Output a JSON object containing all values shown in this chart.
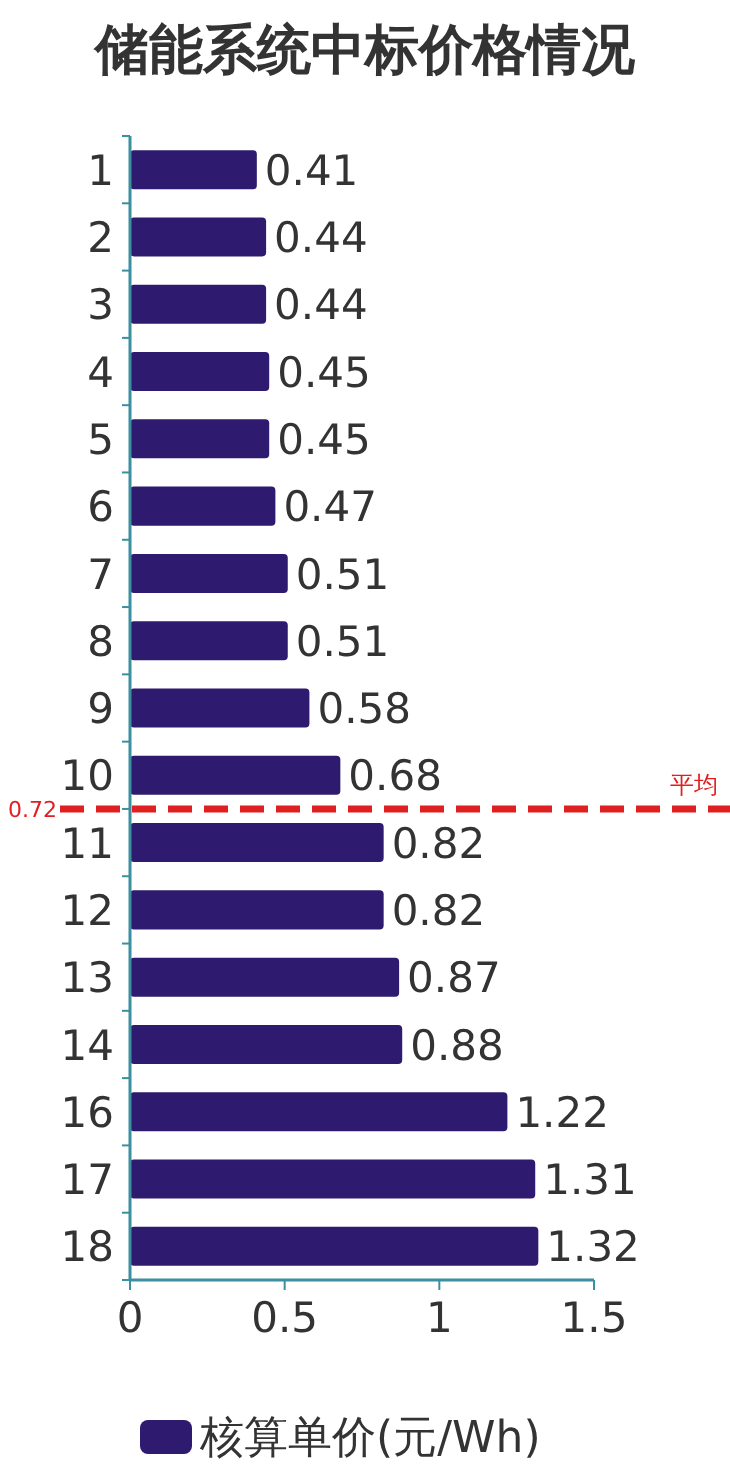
{
  "chart_data": {
    "type": "bar",
    "orientation": "horizontal",
    "title": "储能系统中标价格情况",
    "categories": [
      "1",
      "2",
      "3",
      "4",
      "5",
      "6",
      "7",
      "8",
      "9",
      "10",
      "11",
      "12",
      "13",
      "14",
      "16",
      "17",
      "18"
    ],
    "series": [
      {
        "name": "核算单价(元/Wh)",
        "color": "#2e1a6e",
        "values": [
          0.41,
          0.44,
          0.44,
          0.45,
          0.45,
          0.47,
          0.51,
          0.51,
          0.58,
          0.68,
          0.82,
          0.82,
          0.87,
          0.88,
          1.22,
          1.31,
          1.32
        ]
      }
    ],
    "xlim": [
      0,
      1.5
    ],
    "xticks": [
      0,
      0.5,
      1,
      1.5
    ],
    "data_labels": true,
    "grid": false,
    "legend": "bottom",
    "ref_lines": [
      {
        "axis": "y",
        "value": "10",
        "label": "平均",
        "color": "#e02020",
        "line_style": "dashed"
      }
    ],
    "annotations": [
      "0.72"
    ]
  }
}
